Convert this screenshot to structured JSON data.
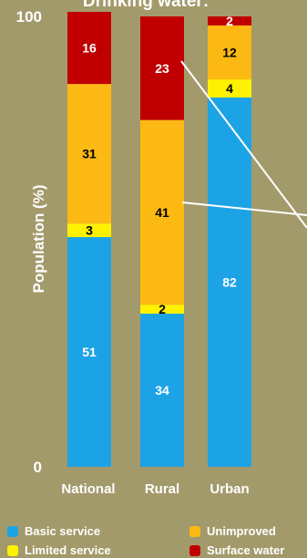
{
  "chart_data": {
    "type": "bar",
    "stacked": true,
    "title": "Drinking water:",
    "ylabel": "Population (%)",
    "ylim": [
      0,
      100
    ],
    "y_ticks": [
      0,
      100
    ],
    "categories": [
      "National",
      "Rural",
      "Urban"
    ],
    "series": [
      {
        "name": "Basic service",
        "color": "#1ca3e6",
        "values": [
          51,
          34,
          82
        ]
      },
      {
        "name": "Limited service",
        "color": "#fff200",
        "values": [
          3,
          2,
          4
        ]
      },
      {
        "name": "Unimproved",
        "color": "#fdb913",
        "values": [
          31,
          41,
          12
        ]
      },
      {
        "name": "Surface water",
        "color": "#c00000",
        "values": [
          16,
          23,
          2
        ]
      }
    ],
    "legend_position": "bottom",
    "grid": false
  }
}
